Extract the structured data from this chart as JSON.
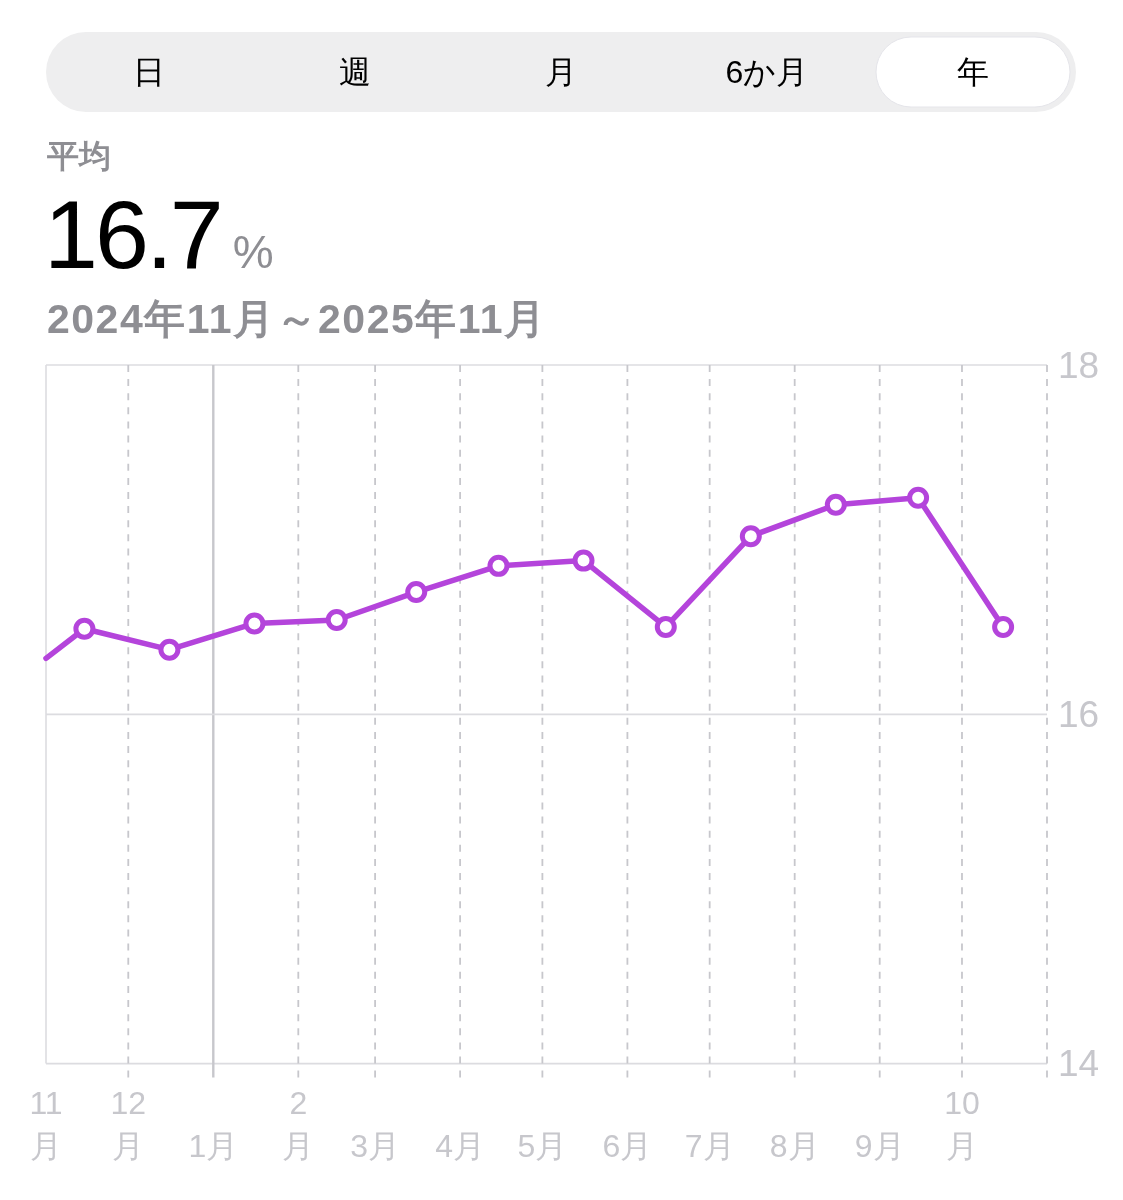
{
  "chart_data": {
    "type": "line",
    "title": "平均",
    "subtitle": "2024年11月～2025年11月",
    "annotations": [
      "日",
      "週",
      "月",
      "6か月",
      "年",
      "16.7",
      "%"
    ],
    "xlim": [
      "2024-11-01",
      "2025-11-01"
    ],
    "xticks": [
      {
        "value": "2024-11-01",
        "label": "11月"
      },
      {
        "value": "2024-12-01",
        "label": "12月"
      },
      {
        "value": "2025-01-01",
        "label": "1月"
      },
      {
        "value": "2025-02-01",
        "label": "2月"
      },
      {
        "value": "2025-03-01",
        "label": "3月"
      },
      {
        "value": "2025-04-01",
        "label": "4月"
      },
      {
        "value": "2025-05-01",
        "label": "5月"
      },
      {
        "value": "2025-06-01",
        "label": "6月"
      },
      {
        "value": "2025-07-01",
        "label": "7月"
      },
      {
        "value": "2025-08-01",
        "label": "8月"
      },
      {
        "value": "2025-09-01",
        "label": "9月"
      },
      {
        "value": "2025-10-01",
        "label": "10月"
      },
      {
        "value": "2025-11-01",
        "label": null
      }
    ],
    "ylim": [
      14,
      18
    ],
    "yticks": [
      14,
      16,
      18
    ],
    "grid": true,
    "line_style": "solid",
    "ref_lines": [
      {
        "axis": "x",
        "value": "2025-01-01",
        "color": "#c7c7cc",
        "line_style": "solid"
      },
      {
        "axis": "y",
        "value": 16,
        "color": "#dcdce0",
        "line_style": "solid"
      }
    ],
    "series": [
      {
        "color": "#b444db",
        "x": [
          "2024-11-01",
          "2024-11-15"
        ],
        "values": [
          16.32,
          16.49
        ]
      },
      {
        "color": "#b444db",
        "marker": "circle",
        "x": [
          "2024-11-15",
          "2024-12-16",
          "2025-01-16",
          "2025-02-15",
          "2025-03-16",
          "2025-04-15",
          "2025-05-16",
          "2025-06-15",
          "2025-07-16",
          "2025-08-16",
          "2025-09-15",
          "2025-10-16"
        ],
        "values": [
          16.49,
          16.37,
          16.52,
          16.54,
          16.7,
          16.85,
          16.88,
          16.5,
          17.02,
          17.2,
          17.24,
          16.5
        ]
      }
    ]
  }
}
